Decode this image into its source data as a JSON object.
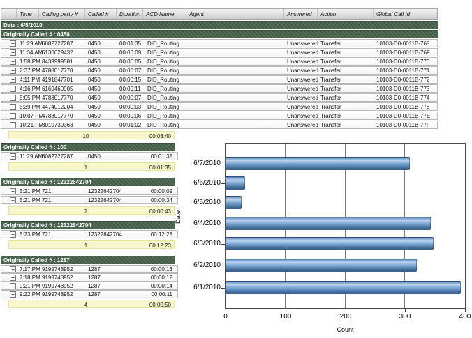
{
  "ui": {
    "expand_icon": "+"
  },
  "colors": {
    "group_band_green": "#4a634e",
    "summary_yellow": "#f7f7cb",
    "header_gray": "#d9d9d9",
    "bar_blue": "#6b97c6"
  },
  "table": {
    "columns": [
      "Time",
      "Calling party #",
      "Called #",
      "Duration",
      "ACD Name",
      "Agent",
      "Answered",
      "Action",
      "Global Call Id"
    ],
    "date_band": "Date : 6/5/2010",
    "groups": [
      {
        "header": "Originally Called # : 0450",
        "rows": [
          {
            "time": "11:29 AM",
            "calling": "6082727287",
            "called": "0450",
            "duration": "00:01:35",
            "acd": "DID_Routing",
            "agent": "",
            "answered": "Unanswered",
            "action": "Transfer",
            "global_id": "10103-D0-0011B-768"
          },
          {
            "time": "11:34 AM",
            "calling": "6130629432",
            "called": "0450",
            "duration": "00:00:09",
            "acd": "DID_Routing",
            "agent": "",
            "answered": "Unanswered",
            "action": "Transfer",
            "global_id": "10103-D0-0011B-76F"
          },
          {
            "time": "1:58 PM",
            "calling": "8439999581",
            "called": "0450",
            "duration": "00:00:05",
            "acd": "DID_Routing",
            "agent": "",
            "answered": "Unanswered",
            "action": "Transfer",
            "global_id": "10103-D0-0011B-770"
          },
          {
            "time": "2:37 PM",
            "calling": "4788017770",
            "called": "0450",
            "duration": "00:00:07",
            "acd": "DID_Routing",
            "agent": "",
            "answered": "Unanswered",
            "action": "Transfer",
            "global_id": "10103-D0-0011B-771"
          },
          {
            "time": "4:11 PM",
            "calling": "4191847701",
            "called": "0450",
            "duration": "00:00:15",
            "acd": "DID_Routing",
            "agent": "",
            "answered": "Unanswered",
            "action": "Transfer",
            "global_id": "10103-D0-0011B-772"
          },
          {
            "time": "4:16 PM",
            "calling": "6169460905",
            "called": "0450",
            "duration": "00:00:11",
            "acd": "DID_Routing",
            "agent": "",
            "answered": "Unanswered",
            "action": "Transfer",
            "global_id": "10103-D0-0011B-773"
          },
          {
            "time": "5:05 PM",
            "calling": "4788017770",
            "called": "0450",
            "duration": "00:00:07",
            "acd": "DID_Routing",
            "agent": "",
            "answered": "Unanswered",
            "action": "Transfer",
            "global_id": "10103-D0-0011B-774"
          },
          {
            "time": "5:39 PM",
            "calling": "4474012204",
            "called": "0450",
            "duration": "00:00:03",
            "acd": "DID_Routing",
            "agent": "",
            "answered": "Unanswered",
            "action": "Transfer",
            "global_id": "10103-D0-0011B-778"
          },
          {
            "time": "10:07 PM",
            "calling": "4788017770",
            "called": "0450",
            "duration": "00:00:06",
            "acd": "DID_Routing",
            "agent": "",
            "answered": "Unanswered",
            "action": "Transfer",
            "global_id": "10103-D0-0011B-77E"
          },
          {
            "time": "10:21 PM",
            "calling": "3010739363",
            "called": "0450",
            "duration": "00:01:02",
            "acd": "DID_Routing",
            "agent": "",
            "answered": "Unanswered",
            "action": "Transfer",
            "global_id": "10103-D0-0011B-77F"
          }
        ],
        "summary": {
          "count": "10",
          "total": "00:03:40"
        }
      },
      {
        "header": "Originally Called # : 100",
        "rows": [
          {
            "time": "11:29 AM",
            "calling": "6082727287",
            "called": "0450",
            "duration": "00:01:35"
          }
        ],
        "summary": {
          "count": "1",
          "total": "00:01:35"
        }
      },
      {
        "header": "Originally Called # : 12322642704",
        "rows": [
          {
            "time": "5:21 PM",
            "calling": "721",
            "called": "12322642704",
            "duration": "00:00:09"
          },
          {
            "time": "5:21 PM",
            "calling": "721",
            "called": "12322642704",
            "duration": "00:00:34"
          }
        ],
        "summary": {
          "count": "2",
          "total": "00:00:43"
        }
      },
      {
        "header": "Originally Called # : 12322842704",
        "rows": [
          {
            "time": "5:23 PM",
            "calling": "721",
            "called": "12322842704",
            "duration": "00:12:23"
          }
        ],
        "summary": {
          "count": "1",
          "total": "00:12:23"
        }
      },
      {
        "header": "Originally Called # : 1287",
        "rows": [
          {
            "time": "7:17 PM",
            "calling": "9199748952",
            "called": "1287",
            "duration": "00:00:13"
          },
          {
            "time": "7:18 PM",
            "calling": "9199748952",
            "called": "1287",
            "duration": "00:00:12"
          },
          {
            "time": "9:21 PM",
            "calling": "9199748952",
            "called": "1287",
            "duration": "00:00:14"
          },
          {
            "time": "9:22 PM",
            "calling": "9199748952",
            "called": "1287",
            "duration": "00:00:11"
          }
        ],
        "summary": {
          "count": "4",
          "total": "00:00:50"
        }
      }
    ]
  },
  "chart_data": {
    "type": "bar",
    "orientation": "horizontal",
    "categories": [
      "6/7/2010",
      "6/6/2010",
      "6/5/2010",
      "6/4/2010",
      "6/3/2010",
      "6/2/2010",
      "6/1/2010"
    ],
    "values": [
      308,
      33,
      27,
      343,
      348,
      319,
      393
    ],
    "xlabel": "Count",
    "ylabel": "Date",
    "xlim": [
      0,
      400
    ],
    "xticks": [
      0,
      100,
      200,
      300,
      400
    ],
    "grid": true,
    "legend": false
  }
}
